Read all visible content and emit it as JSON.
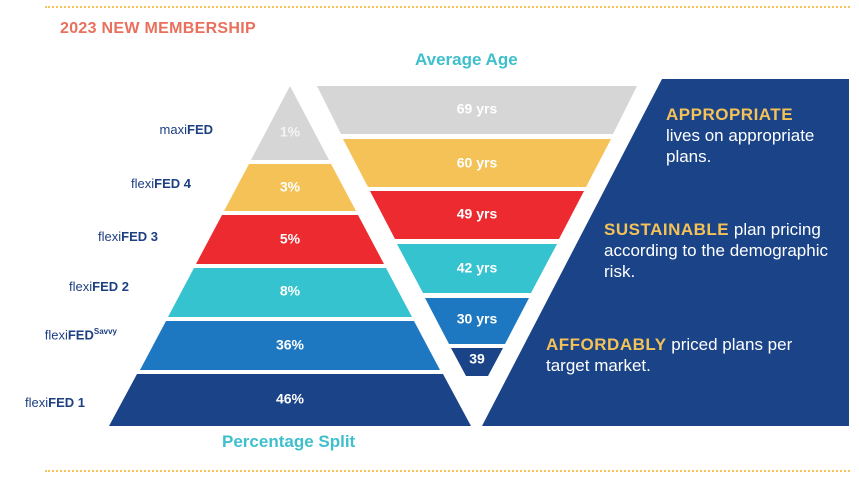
{
  "header": {
    "title": "2023 NEW MEMBERSHIP"
  },
  "axes": {
    "top_title": "Average Age",
    "bottom_title": "Percentage Split"
  },
  "plans": [
    {
      "prefix": "maxi",
      "bold": "FED",
      "suffix": "",
      "sup": "",
      "percent": "1%",
      "age": "69 yrs",
      "color": "#d6d6d6"
    },
    {
      "prefix": "flexi",
      "bold": "FED 4",
      "suffix": "",
      "sup": "",
      "percent": "3%",
      "age": "60 yrs",
      "color": "#f4c256"
    },
    {
      "prefix": "flexi",
      "bold": "FED 3",
      "suffix": "",
      "sup": "",
      "percent": "5%",
      "age": "49 yrs",
      "color": "#ec2a30"
    },
    {
      "prefix": "flexi",
      "bold": "FED 2",
      "suffix": "",
      "sup": "",
      "percent": "8%",
      "age": "42 yrs",
      "color": "#34c3cf"
    },
    {
      "prefix": "flexi",
      "bold": "FED",
      "suffix": "",
      "sup": "Savvy",
      "percent": "36%",
      "age": "30 yrs",
      "color": "#1d78c1"
    },
    {
      "prefix": "flexi",
      "bold": "FED 1",
      "suffix": "",
      "sup": "",
      "percent": "46%",
      "age": "39",
      "color": "#1a4388"
    }
  ],
  "panel": {
    "color": "#1a4388",
    "items": [
      {
        "keyword": "APPROPRIATE",
        "text": "lives on appropriate plans."
      },
      {
        "keyword": "SUSTAINABLE",
        "text": "plan pricing according to the demographic risk."
      },
      {
        "keyword": "AFFORDABLY",
        "text": "priced plans per target market."
      }
    ]
  }
}
